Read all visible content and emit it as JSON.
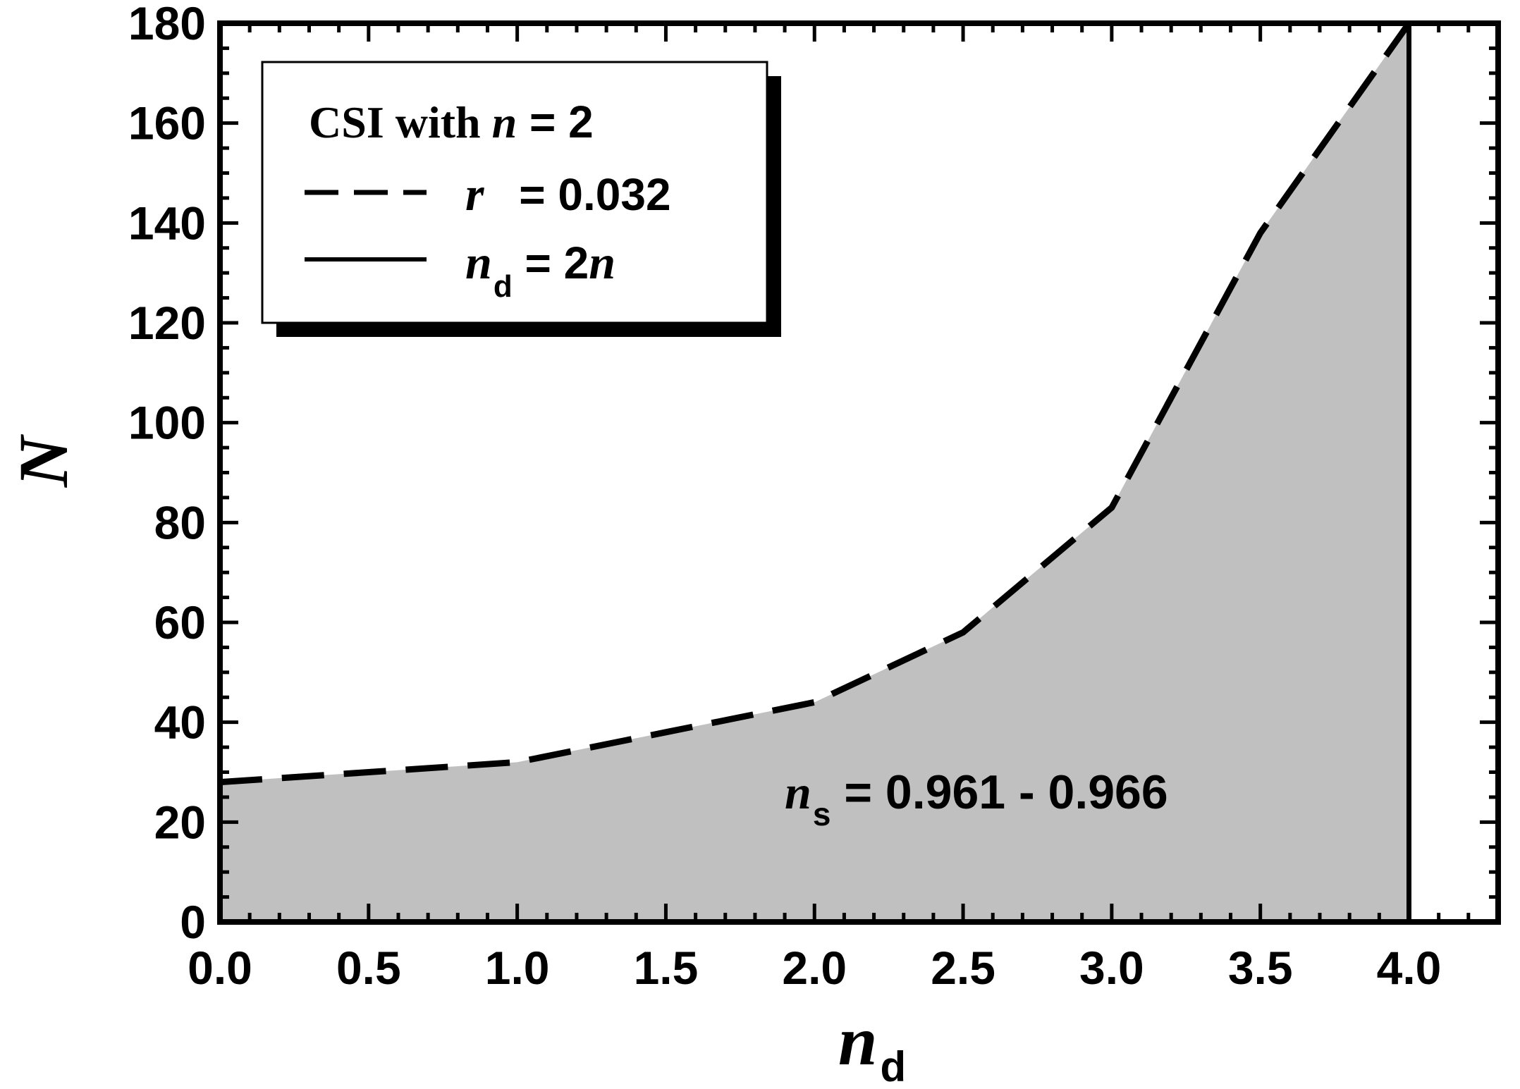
{
  "chart_data": {
    "type": "area",
    "xlim": [
      0.0,
      4.3
    ],
    "ylim": [
      0,
      180
    ],
    "xticks": [
      "0.0",
      "0.5",
      "1.0",
      "1.5",
      "2.0",
      "2.5",
      "3.0",
      "3.5",
      "4.0"
    ],
    "yticks": [
      "0",
      "20",
      "40",
      "60",
      "80",
      "100",
      "120",
      "140",
      "160",
      "180"
    ],
    "xlabel": {
      "main": "n",
      "sub": "d"
    },
    "ylabel": "N",
    "legend": {
      "position": "top-left",
      "title": {
        "prefix": "CSI with ",
        "var": "n",
        "suffix": " = 2"
      },
      "entries": [
        {
          "style": "dashed",
          "var": "r",
          "sub": "",
          "text": " = 0.032"
        },
        {
          "style": "solid",
          "var": "n",
          "sub": "d",
          "text": " = 2",
          "trail": "n"
        }
      ]
    },
    "annotation": {
      "var": "n",
      "sub": "s",
      "text": " = 0.961 - 0.966",
      "x": 2.0,
      "y": 27
    },
    "series": [
      {
        "style": "dashed",
        "x": [
          0.0,
          0.5,
          1.0,
          1.5,
          2.0,
          2.5,
          3.0,
          3.5,
          4.0
        ],
        "y": [
          28,
          30,
          32,
          38,
          44,
          58,
          83,
          138,
          180
        ]
      }
    ],
    "vline": {
      "style": "solid",
      "x": 4.0
    },
    "shaded_region": {
      "between": "series 1 and y = 0",
      "x_range": [
        0.0,
        4.0
      ],
      "color": "#c0c0c0"
    },
    "grid": false
  }
}
